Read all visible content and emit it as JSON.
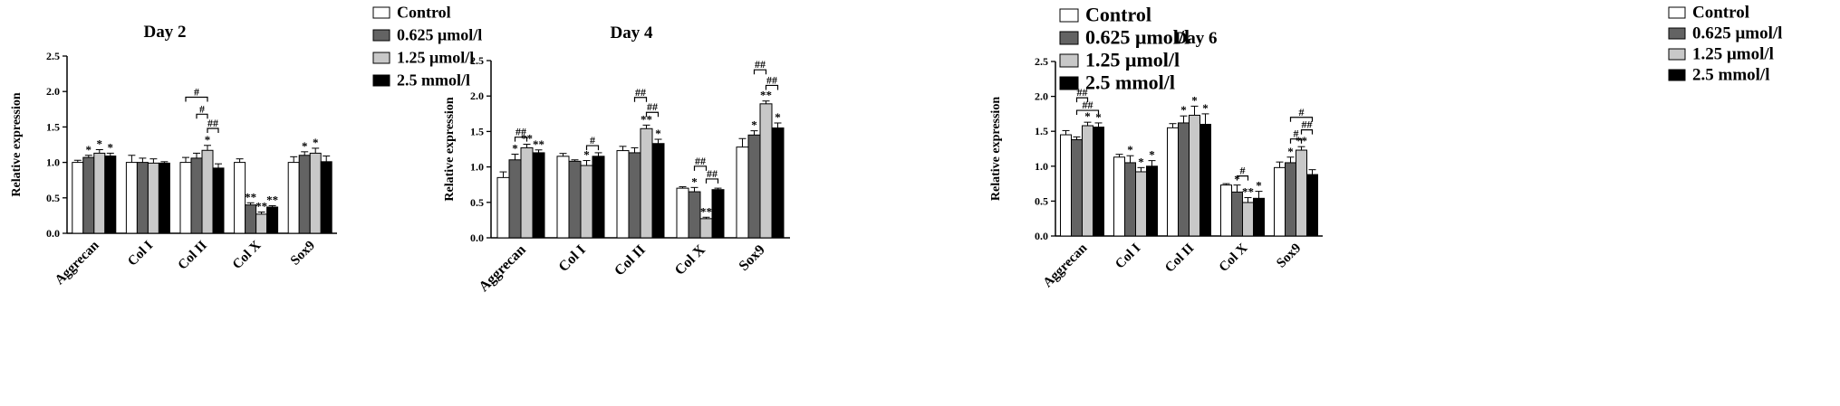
{
  "chart_data": [
    {
      "type": "bar",
      "title": "Day 2",
      "ylabel": "Relative expression",
      "ylim": [
        0,
        2.5
      ],
      "yticks": [
        "0.0",
        "0.5",
        "1.0",
        "1.5",
        "2.0",
        "2.5"
      ],
      "categories": [
        "Aggrecan",
        "Col I",
        "Col II",
        "Col X",
        "Sox9"
      ],
      "legend_position": "top-right",
      "series": [
        {
          "name": "Control",
          "values": [
            1.0,
            1.0,
            1.0,
            1.0,
            1.0
          ],
          "errors": [
            0.03,
            0.1,
            0.07,
            0.05,
            0.08
          ]
        },
        {
          "name": "0.625 μmol/l",
          "values": [
            1.07,
            1.0,
            1.06,
            0.4,
            1.1
          ],
          "errors": [
            0.03,
            0.06,
            0.07,
            0.03,
            0.05
          ]
        },
        {
          "name": "1.25 μmol/l",
          "values": [
            1.13,
            0.99,
            1.17,
            0.27,
            1.13
          ],
          "errors": [
            0.05,
            0.06,
            0.07,
            0.03,
            0.07
          ]
        },
        {
          "name": "2.5 mmol/l",
          "values": [
            1.09,
            0.99,
            0.92,
            0.37,
            1.01
          ],
          "errors": [
            0.04,
            0.02,
            0.06,
            0.02,
            0.08
          ]
        }
      ],
      "annotations": {
        "stars": [
          {
            "category": "Aggrecan",
            "series": 1,
            "text": "*"
          },
          {
            "category": "Aggrecan",
            "series": 2,
            "text": "*"
          },
          {
            "category": "Aggrecan",
            "series": 3,
            "text": "*"
          },
          {
            "category": "Col II",
            "series": 2,
            "text": "*"
          },
          {
            "category": "Col X",
            "series": 1,
            "text": "**"
          },
          {
            "category": "Col X",
            "series": 2,
            "text": "**"
          },
          {
            "category": "Col X",
            "series": 3,
            "text": "**"
          },
          {
            "category": "Sox9",
            "series": 1,
            "text": "*"
          },
          {
            "category": "Sox9",
            "series": 2,
            "text": "*"
          }
        ],
        "brackets": [
          {
            "category": "Col II",
            "from": 1,
            "to": 2,
            "level": 1.68,
            "text": "#"
          },
          {
            "category": "Col II",
            "from": 2,
            "to": 3,
            "level": 1.48,
            "text": "##"
          },
          {
            "category": "Col II",
            "from": 0,
            "to": 2,
            "level": 1.92,
            "text": "#"
          }
        ]
      }
    },
    {
      "type": "bar",
      "title": "Day 4",
      "ylabel": "Relative expression",
      "ylim": [
        0,
        2.5
      ],
      "yticks": [
        "0.0",
        "0.5",
        "1.0",
        "1.5",
        "2.0",
        "2.5"
      ],
      "categories": [
        "Aggrecan",
        "Col I",
        "Col II",
        "Col X",
        "Sox9"
      ],
      "legend_position": "top-right",
      "series": [
        {
          "name": "Control",
          "values": [
            0.85,
            1.15,
            1.23,
            0.7,
            1.28
          ],
          "errors": [
            0.08,
            0.04,
            0.06,
            0.02,
            0.12
          ]
        },
        {
          "name": "0.625 μmol/l",
          "values": [
            1.1,
            1.08,
            1.2,
            0.65,
            1.45
          ],
          "errors": [
            0.08,
            0.02,
            0.07,
            0.06,
            0.06
          ]
        },
        {
          "name": "1.25 μmol/l",
          "values": [
            1.27,
            1.02,
            1.54,
            0.27,
            1.89
          ],
          "errors": [
            0.05,
            0.07,
            0.05,
            0.02,
            0.04
          ]
        },
        {
          "name": "2.5 mmol/l",
          "values": [
            1.2,
            1.15,
            1.33,
            0.68,
            1.55
          ],
          "errors": [
            0.04,
            0.05,
            0.06,
            0.02,
            0.07
          ]
        }
      ],
      "annotations": {
        "stars": [
          {
            "category": "Aggrecan",
            "series": 1,
            "text": "*"
          },
          {
            "category": "Aggrecan",
            "series": 2,
            "text": "**"
          },
          {
            "category": "Aggrecan",
            "series": 3,
            "text": "**"
          },
          {
            "category": "Col I",
            "series": 2,
            "text": "*"
          },
          {
            "category": "Col II",
            "series": 2,
            "text": "**"
          },
          {
            "category": "Col II",
            "series": 3,
            "text": "*"
          },
          {
            "category": "Col X",
            "series": 1,
            "text": "*"
          },
          {
            "category": "Col X",
            "series": 2,
            "text": "**"
          },
          {
            "category": "Sox9",
            "series": 1,
            "text": "*"
          },
          {
            "category": "Sox9",
            "series": 2,
            "text": "**"
          },
          {
            "category": "Sox9",
            "series": 3,
            "text": "*"
          }
        ],
        "brackets": [
          {
            "category": "Aggrecan",
            "from": 1,
            "to": 2,
            "level": 1.42,
            "text": "##"
          },
          {
            "category": "Col I",
            "from": 2,
            "to": 3,
            "level": 1.3,
            "text": "#"
          },
          {
            "category": "Col II",
            "from": 1,
            "to": 2,
            "level": 1.98,
            "text": "##"
          },
          {
            "category": "Col II",
            "from": 2,
            "to": 3,
            "level": 1.77,
            "text": "##"
          },
          {
            "category": "Col X",
            "from": 1,
            "to": 2,
            "level": 1.01,
            "text": "##"
          },
          {
            "category": "Col X",
            "from": 2,
            "to": 3,
            "level": 0.83,
            "text": "##"
          },
          {
            "category": "Sox9",
            "from": 1,
            "to": 2,
            "level": 2.37,
            "text": "##"
          },
          {
            "category": "Sox9",
            "from": 2,
            "to": 3,
            "level": 2.15,
            "text": "##"
          }
        ]
      }
    },
    {
      "type": "bar",
      "title": "Day 6",
      "ylabel": "Relative expression",
      "ylim": [
        0,
        2.5
      ],
      "yticks": [
        "0.0",
        "0.5",
        "1.0",
        "1.5",
        "2.0",
        "2.5"
      ],
      "categories": [
        "Aggrecan",
        "Col I",
        "Col II",
        "Col X",
        "Sox9"
      ],
      "legend_position": "top-right",
      "series": [
        {
          "name": "Control",
          "values": [
            1.45,
            1.13,
            1.55,
            0.73,
            0.98
          ],
          "errors": [
            0.06,
            0.04,
            0.06,
            0.02,
            0.08
          ]
        },
        {
          "name": "0.625 μmol/l",
          "values": [
            1.38,
            1.05,
            1.62,
            0.63,
            1.05
          ],
          "errors": [
            0.04,
            0.1,
            0.1,
            0.1,
            0.08
          ]
        },
        {
          "name": "1.25 μmol/l",
          "values": [
            1.58,
            0.92,
            1.73,
            0.48,
            1.23
          ],
          "errors": [
            0.05,
            0.06,
            0.13,
            0.07,
            0.05
          ]
        },
        {
          "name": "2.5 mmol/l",
          "values": [
            1.56,
            1.0,
            1.6,
            0.54,
            0.88
          ],
          "errors": [
            0.06,
            0.08,
            0.15,
            0.1,
            0.07
          ]
        }
      ],
      "annotations": {
        "stars": [
          {
            "category": "Aggrecan",
            "series": 2,
            "text": "*"
          },
          {
            "category": "Aggrecan",
            "series": 3,
            "text": "*"
          },
          {
            "category": "Col I",
            "series": 1,
            "text": "*"
          },
          {
            "category": "Col I",
            "series": 2,
            "text": "*"
          },
          {
            "category": "Col I",
            "series": 3,
            "text": "*"
          },
          {
            "category": "Col II",
            "series": 1,
            "text": "*"
          },
          {
            "category": "Col II",
            "series": 2,
            "text": "*"
          },
          {
            "category": "Col II",
            "series": 3,
            "text": "*"
          },
          {
            "category": "Col X",
            "series": 1,
            "text": "*"
          },
          {
            "category": "Col X",
            "series": 2,
            "text": "**"
          },
          {
            "category": "Col X",
            "series": 3,
            "text": "*"
          },
          {
            "category": "Sox9",
            "series": 1,
            "text": "*"
          },
          {
            "category": "Sox9",
            "series": 2,
            "text": "**"
          }
        ],
        "brackets": [
          {
            "category": "Aggrecan",
            "from": 1,
            "to": 2,
            "level": 1.98,
            "text": "##"
          },
          {
            "category": "Aggrecan",
            "from": 1,
            "to": 3,
            "level": 1.8,
            "text": "##"
          },
          {
            "category": "Col X",
            "from": 1,
            "to": 2,
            "level": 0.86,
            "text": "#"
          },
          {
            "category": "Sox9",
            "from": 1,
            "to": 3,
            "level": 1.7,
            "text": "#"
          },
          {
            "category": "Sox9",
            "from": 2,
            "to": 3,
            "level": 1.52,
            "text": "##"
          },
          {
            "category": "Sox9",
            "from": 1,
            "to": 2,
            "level": 1.39,
            "text": "#"
          }
        ]
      }
    }
  ],
  "colors": {
    "Control": "#ffffff",
    "0.625 μmol/l": "#636363",
    "1.25 μmol/l": "#c8c8c8",
    "2.5 mmol/l": "#000000"
  }
}
